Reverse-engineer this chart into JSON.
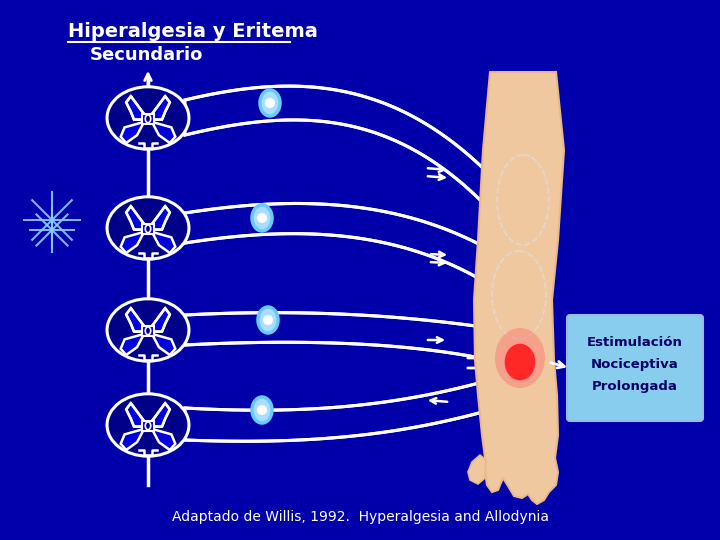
{
  "bg_color": "#0000aa",
  "title_line1": "Hiperalgesia y Eritema",
  "title_line2": "Secundario",
  "title_color": "#ffffff",
  "title_fontsize": 14,
  "subtitle_fontsize": 13,
  "footnote": "Adaptado de Willis, 1992.  Hyperalgesia and Allodynia",
  "footnote_color": "#ffffff",
  "footnote_fontsize": 10,
  "box_label_line1": "Estimulación",
  "box_label_line2": "Nociceptiva",
  "box_label_line3": "Prolongada",
  "box_color": "#88ccee",
  "box_text_color": "#000066",
  "white": "#ffffff",
  "cyan_dot_edge": "#66ccff",
  "cyan_dot_face": "#aaddff",
  "skin_color": "#f0c8a0",
  "skin_edge": "#e8b888",
  "red_spot": "#ff2222",
  "dark_blue": "#0000cc",
  "mid_blue": "#0000dd",
  "bg2": "#000088"
}
